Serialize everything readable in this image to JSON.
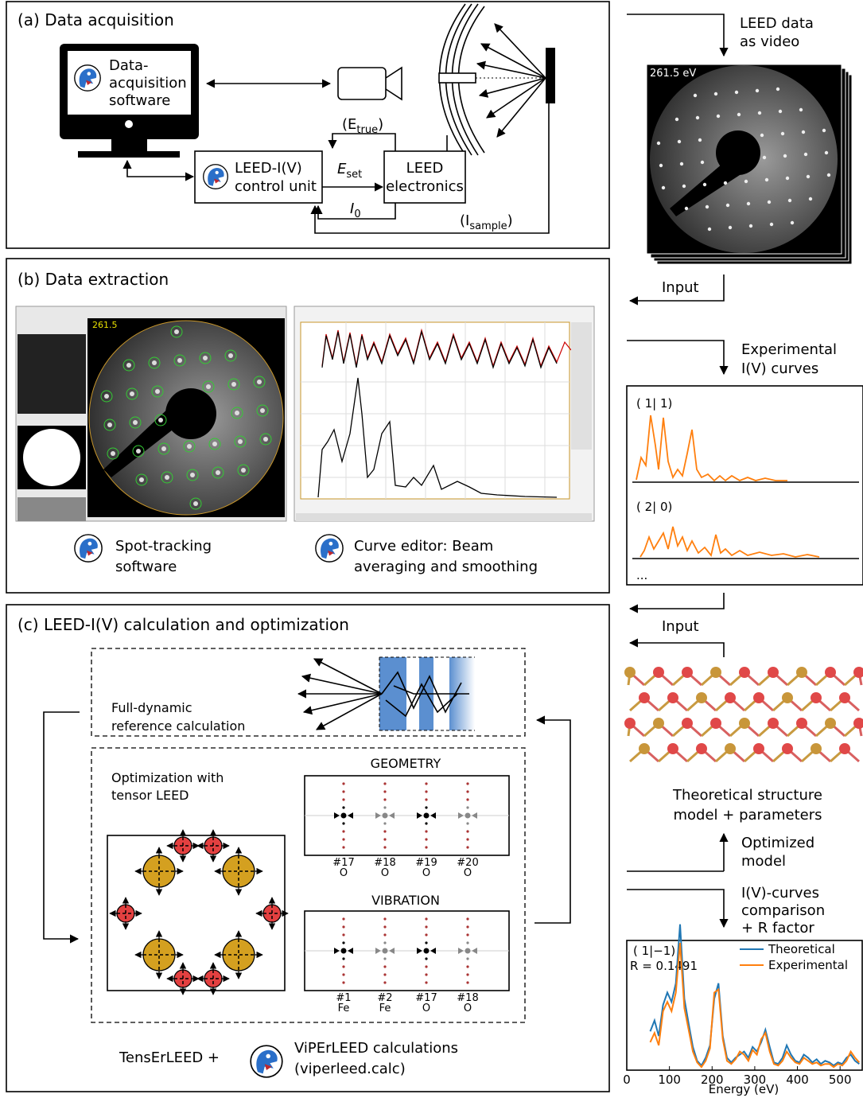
{
  "panel_a": {
    "title": "(a) Data acquisition",
    "software": [
      "Data-",
      "acquisition",
      "software"
    ],
    "control_unit": [
      "LEED-I(V)",
      "control unit"
    ],
    "electronics": [
      "LEED",
      "electronics"
    ],
    "e_true": {
      "prefix": "(E",
      "subscript": "true",
      "suffix": ")"
    },
    "e_set": {
      "symbol": "E",
      "subscript": "set"
    },
    "i_zero": {
      "symbol": "I",
      "subscript": "0"
    },
    "i_sample": {
      "prefix": "(I",
      "subscript": "sample",
      "suffix": ")"
    }
  },
  "panel_b": {
    "title": "(b) Data extraction",
    "frame_energy": "261.5",
    "spot_caption": [
      "Spot-tracking",
      "software"
    ],
    "curve_caption": [
      "Curve editor: Beam",
      "averaging and smoothing"
    ]
  },
  "panel_c": {
    "title": "(c) LEED-I(V) calculation and optimization",
    "reference": [
      "Full-dynamic",
      "reference calculation"
    ],
    "tensor": [
      "Optimization with",
      "tensor LEED"
    ],
    "geometry": {
      "title": "GEOMETRY",
      "atoms": [
        {
          "number": "#17",
          "element": "O"
        },
        {
          "number": "#18",
          "element": "O"
        },
        {
          "number": "#19",
          "element": "O"
        },
        {
          "number": "#20",
          "element": "O"
        }
      ]
    },
    "vibration": {
      "title": "VIBRATION",
      "atoms": [
        {
          "number": "#1",
          "element": "Fe"
        },
        {
          "number": "#2",
          "element": "Fe"
        },
        {
          "number": "#17",
          "element": "O"
        },
        {
          "number": "#18",
          "element": "O"
        }
      ]
    },
    "footer": {
      "left": "TensErLEED +",
      "right": [
        "ViPErLEED calculations",
        "(viperleed.calc)"
      ]
    }
  },
  "workflow": {
    "video_label": [
      "LEED data",
      "as video"
    ],
    "video_energy": "261.5 eV",
    "input_1": "Input",
    "experimental_label": [
      "Experimental",
      "I(V) curves"
    ],
    "experimental_beams": [
      "( 1| 1)",
      "( 2| 0)"
    ],
    "more": "...",
    "input_2": "Input",
    "structure_label": [
      "Theoretical structure",
      "model + parameters"
    ],
    "optimized": [
      "Optimized",
      "model"
    ],
    "comparison": [
      "I(V)-curves",
      "comparison",
      "+ R factor"
    ]
  },
  "chart_data": {
    "type": "line",
    "title": "( 1|−1)",
    "annotation": "R = 0.1491",
    "x": [
      55,
      65,
      75,
      85,
      95,
      105,
      115,
      125,
      135,
      145,
      155,
      165,
      175,
      185,
      195,
      205,
      215,
      225,
      235,
      245,
      255,
      265,
      275,
      285,
      295,
      305,
      315,
      325,
      335,
      345,
      355,
      365,
      375,
      385,
      395,
      405,
      415,
      425,
      435,
      445,
      455,
      465,
      475,
      485,
      495,
      505,
      515,
      525,
      535,
      545
    ],
    "series": [
      {
        "name": "Theoretical",
        "color": "#1f77b4",
        "values": [
          0.25,
          0.32,
          0.22,
          0.42,
          0.5,
          0.44,
          0.56,
          0.94,
          0.46,
          0.3,
          0.15,
          0.06,
          0.03,
          0.08,
          0.16,
          0.46,
          0.56,
          0.22,
          0.08,
          0.05,
          0.08,
          0.1,
          0.12,
          0.08,
          0.15,
          0.12,
          0.18,
          0.26,
          0.15,
          0.05,
          0.04,
          0.08,
          0.16,
          0.1,
          0.06,
          0.05,
          0.1,
          0.08,
          0.05,
          0.07,
          0.04,
          0.06,
          0.05,
          0.03,
          0.05,
          0.04,
          0.08,
          0.1,
          0.06,
          0.04
        ]
      },
      {
        "name": "Experimental",
        "color": "#ff7f0e",
        "values": [
          0.18,
          0.24,
          0.16,
          0.38,
          0.44,
          0.38,
          0.5,
          0.82,
          0.4,
          0.26,
          0.12,
          0.05,
          0.02,
          0.06,
          0.14,
          0.5,
          0.52,
          0.2,
          0.06,
          0.04,
          0.07,
          0.12,
          0.1,
          0.06,
          0.13,
          0.1,
          0.2,
          0.24,
          0.12,
          0.04,
          0.03,
          0.06,
          0.12,
          0.08,
          0.05,
          0.04,
          0.08,
          0.06,
          0.04,
          0.05,
          0.03,
          0.04,
          0.04,
          0.02,
          0.04,
          0.03,
          0.06,
          0.12,
          0.08,
          0.05
        ]
      }
    ],
    "xlim": [
      0,
      550
    ],
    "ylim": [
      0,
      1
    ],
    "xticks": [
      0,
      100,
      200,
      300,
      400,
      500
    ],
    "xlabel": "Energy (eV)",
    "legend": "upper right"
  }
}
